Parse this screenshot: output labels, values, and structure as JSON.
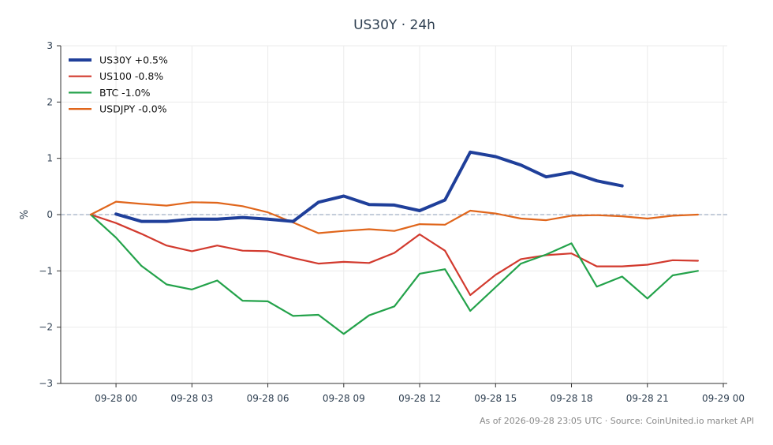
{
  "chart_data": {
    "type": "line",
    "title": "US30Y · 24h",
    "xlabel": "",
    "ylabel": "%",
    "ylim": [
      -3,
      3
    ],
    "yticks": [
      3,
      2,
      1,
      0,
      -1,
      -2,
      -3
    ],
    "ytick_labels": [
      "3",
      "2",
      "1",
      "0",
      "−1",
      "−2",
      "−3"
    ],
    "x": [
      "09-27 23:00",
      "09-28 00:00",
      "09-28 01:00",
      "09-28 02:00",
      "09-28 03:00",
      "09-28 04:00",
      "09-28 05:00",
      "09-28 06:00",
      "09-28 07:00",
      "09-28 08:00",
      "09-28 09:00",
      "09-28 10:00",
      "09-28 11:00",
      "09-28 12:00",
      "09-28 13:00",
      "09-28 14:00",
      "09-28 15:00",
      "09-28 16:00",
      "09-28 17:00",
      "09-28 18:00",
      "09-28 19:00",
      "09-28 20:00",
      "09-28 21:00",
      "09-28 22:00",
      "09-28 23:00"
    ],
    "xticks": [
      "09-28 00",
      "09-28 03",
      "09-28 06",
      "09-28 09",
      "09-28 12",
      "09-28 15",
      "09-28 18",
      "09-28 21",
      "09-29 00"
    ],
    "grid": true,
    "legend_position": "top-left",
    "reference_line": 0,
    "series": [
      {
        "name": "US30Y +0.5%",
        "color": "#1f3f9a",
        "width": "thick",
        "values": [
          null,
          0.01,
          -0.12,
          -0.12,
          -0.08,
          -0.08,
          -0.05,
          -0.08,
          -0.12,
          0.22,
          0.33,
          0.18,
          0.17,
          0.07,
          0.26,
          1.11,
          1.03,
          0.88,
          0.67,
          0.75,
          0.6,
          0.51,
          null,
          null,
          null
        ]
      },
      {
        "name": "US100 -0.8%",
        "color": "#d23a2e",
        "width": "normal",
        "values": [
          0,
          -0.15,
          -0.34,
          -0.55,
          -0.65,
          -0.55,
          -0.64,
          -0.65,
          -0.77,
          -0.87,
          -0.84,
          -0.86,
          -0.68,
          -0.35,
          -0.64,
          -1.43,
          -1.07,
          -0.79,
          -0.72,
          -0.69,
          -0.92,
          -0.92,
          -0.89,
          -0.81,
          -0.82
        ]
      },
      {
        "name": "BTC -1.0%",
        "color": "#23a24a",
        "width": "normal",
        "values": [
          0,
          -0.41,
          -0.91,
          -1.24,
          -1.33,
          -1.17,
          -1.53,
          -1.54,
          -1.8,
          -1.78,
          -2.12,
          -1.79,
          -1.63,
          -1.05,
          -0.97,
          -1.71,
          -1.29,
          -0.87,
          -0.71,
          -0.51,
          -1.28,
          -1.1,
          -1.49,
          -1.08,
          -1.0
        ]
      },
      {
        "name": "USDJPY -0.0%",
        "color": "#e0661c",
        "width": "normal",
        "values": [
          0,
          0.23,
          0.19,
          0.16,
          0.22,
          0.21,
          0.15,
          0.04,
          -0.14,
          -0.33,
          -0.29,
          -0.26,
          -0.29,
          -0.17,
          -0.18,
          0.07,
          0.02,
          -0.07,
          -0.1,
          -0.02,
          -0.01,
          -0.03,
          -0.07,
          -0.02,
          0.0
        ]
      }
    ]
  },
  "footer_text": "As of 2026-09-28 23:05 UTC · Source: CoinUnited.io market API"
}
